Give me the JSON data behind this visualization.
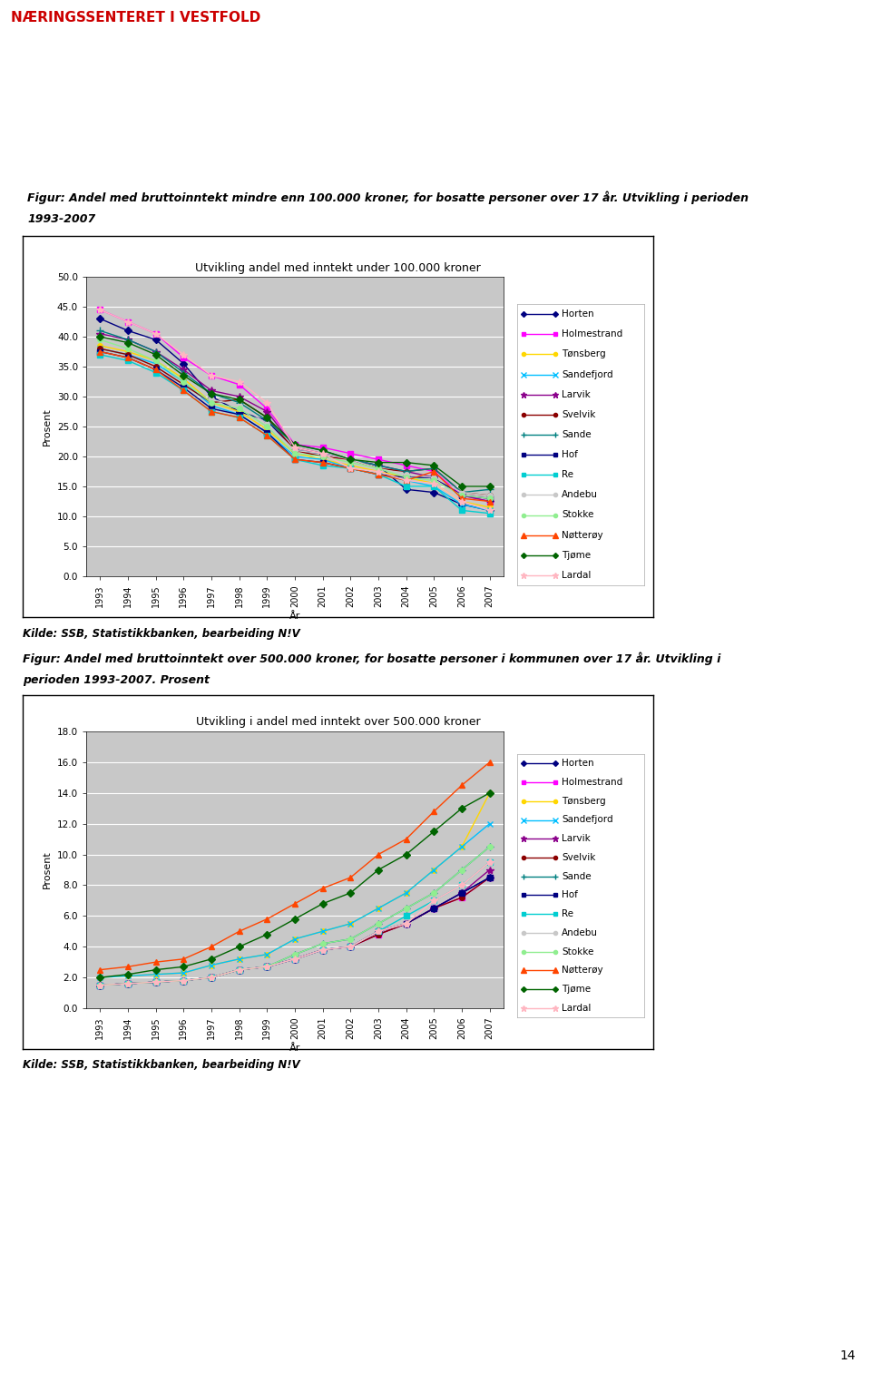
{
  "years": [
    1993,
    1994,
    1995,
    1996,
    1997,
    1998,
    1999,
    2000,
    2001,
    2002,
    2003,
    2004,
    2005,
    2006,
    2007
  ],
  "header_text": "NÆRINGSSENTERET I VESTFOLD",
  "header_bg": "#f0ebe8",
  "header_text_color": "#cc0000",
  "header_exclamation_bg": "#cc0000",
  "page_bg": "#ffffff",
  "fig1_caption_line1": "Figur: Andel med bruttoinntekt mindre enn 100.000 kroner, for bosatte personer over 17 år. Utvikling i perioden",
  "fig1_caption_line2": "1993-2007",
  "fig1_title": "Utvikling andel med inntekt under 100.000 kroner",
  "fig1_ylabel": "Prosent",
  "fig1_xlabel": "År",
  "fig1_ylim": [
    0,
    50
  ],
  "fig1_yticks": [
    0.0,
    5.0,
    10.0,
    15.0,
    20.0,
    25.0,
    30.0,
    35.0,
    40.0,
    45.0,
    50.0
  ],
  "fig1_source": "Kilde: SSB, Statistikkbanken, bearbeiding N!V",
  "fig2_caption_line1": "Figur: Andel med bruttoinntekt over 500.000 kroner, for bosatte personer i kommunen over 17 år. Utvikling i",
  "fig2_caption_line2": "perioden 1993-2007. Prosent",
  "fig2_title": "Utvikling i andel med inntekt over 500.000 kroner",
  "fig2_ylabel": "Prosent",
  "fig2_xlabel": "År",
  "fig2_ylim": [
    0,
    18
  ],
  "fig2_yticks": [
    0.0,
    2.0,
    4.0,
    6.0,
    8.0,
    10.0,
    12.0,
    14.0,
    16.0,
    18.0
  ],
  "fig2_source": "Kilde: SSB, Statistikkbanken, bearbeiding N!V",
  "municipalities": [
    "Horten",
    "Holmestrand",
    "Tønsberg",
    "Sandefjord",
    "Larvik",
    "Svelvik",
    "Sande",
    "Hof",
    "Re",
    "Andebu",
    "Stokke",
    "Nøtterøy",
    "Tjøme",
    "Lardal"
  ],
  "colors": [
    "#000080",
    "#FF00FF",
    "#FFD700",
    "#00BFFF",
    "#8B008B",
    "#8B0000",
    "#008080",
    "#000080",
    "#00CED1",
    "#C8C8C8",
    "#90EE90",
    "#FF4500",
    "#006400",
    "#FFB6C1"
  ],
  "markers": [
    "D",
    "s",
    "o",
    "x",
    "*",
    "o",
    "+",
    "s",
    "s",
    "o",
    "o",
    "^",
    "D",
    "*"
  ],
  "markersizes": [
    4,
    4,
    4,
    5,
    6,
    4,
    6,
    4,
    4,
    4,
    4,
    5,
    4,
    6
  ],
  "fig1_data": {
    "Horten": [
      43.0,
      41.0,
      39.5,
      35.5,
      30.0,
      27.5,
      26.0,
      21.0,
      20.5,
      19.5,
      18.5,
      14.5,
      14.0,
      12.0,
      11.0
    ],
    "Holmestrand": [
      44.5,
      42.5,
      40.5,
      36.5,
      33.5,
      32.0,
      28.0,
      22.0,
      21.5,
      20.5,
      19.5,
      18.5,
      17.5,
      13.5,
      12.5
    ],
    "Tønsberg": [
      38.5,
      37.5,
      36.0,
      33.0,
      29.0,
      27.5,
      24.5,
      20.5,
      19.5,
      18.5,
      17.5,
      16.5,
      15.5,
      12.5,
      11.5
    ],
    "Sandefjord": [
      38.0,
      37.0,
      35.5,
      32.5,
      28.5,
      27.0,
      24.0,
      20.0,
      19.5,
      18.0,
      17.0,
      16.0,
      15.0,
      12.0,
      11.0
    ],
    "Larvik": [
      40.5,
      39.5,
      37.5,
      34.5,
      31.0,
      30.0,
      27.5,
      21.5,
      20.5,
      19.5,
      18.5,
      17.5,
      16.5,
      13.5,
      12.5
    ],
    "Svelvik": [
      38.0,
      37.0,
      35.0,
      32.0,
      29.0,
      29.5,
      26.5,
      21.0,
      20.0,
      19.5,
      18.0,
      17.5,
      18.0,
      14.0,
      13.5
    ],
    "Sande": [
      41.0,
      39.5,
      37.5,
      34.0,
      30.5,
      29.0,
      26.0,
      22.0,
      21.0,
      19.5,
      18.5,
      17.5,
      18.0,
      14.0,
      14.5
    ],
    "Hof": [
      37.5,
      36.5,
      34.5,
      31.5,
      28.0,
      27.0,
      24.0,
      19.5,
      19.0,
      18.0,
      17.0,
      16.5,
      16.5,
      13.5,
      13.0
    ],
    "Re": [
      37.0,
      36.0,
      34.0,
      31.0,
      27.5,
      26.5,
      23.5,
      19.5,
      18.5,
      18.0,
      17.0,
      15.0,
      15.0,
      11.0,
      10.5
    ],
    "Andebu": [
      40.0,
      38.5,
      36.5,
      33.5,
      29.5,
      28.5,
      25.5,
      21.0,
      20.5,
      19.5,
      18.0,
      17.0,
      16.5,
      14.0,
      13.5
    ],
    "Stokke": [
      39.5,
      38.0,
      36.0,
      32.5,
      29.0,
      28.0,
      25.0,
      20.5,
      20.0,
      19.0,
      18.0,
      16.5,
      16.0,
      13.5,
      13.0
    ],
    "Nøtterøy": [
      37.5,
      36.5,
      34.5,
      31.0,
      27.5,
      26.5,
      23.5,
      19.5,
      19.0,
      18.0,
      17.0,
      16.0,
      17.5,
      13.0,
      12.5
    ],
    "Tjøme": [
      40.0,
      39.0,
      37.0,
      33.5,
      30.5,
      29.5,
      26.5,
      22.0,
      21.0,
      19.5,
      19.0,
      19.0,
      18.5,
      15.0,
      15.0
    ],
    "Lardal": [
      44.5,
      42.5,
      40.5,
      37.0,
      33.5,
      32.5,
      29.0,
      21.5,
      20.5,
      18.0,
      17.5,
      16.0,
      15.5,
      12.5,
      11.0
    ]
  },
  "fig2_data": {
    "Horten": [
      1.5,
      1.6,
      1.7,
      1.8,
      2.0,
      2.5,
      2.7,
      3.2,
      3.8,
      4.0,
      5.0,
      5.5,
      6.5,
      7.5,
      8.5
    ],
    "Holmestrand": [
      1.5,
      1.6,
      1.7,
      1.8,
      2.0,
      2.5,
      2.7,
      3.2,
      3.8,
      4.0,
      4.8,
      5.5,
      6.5,
      7.2,
      8.5
    ],
    "Tønsberg": [
      2.0,
      2.1,
      2.2,
      2.3,
      2.8,
      3.2,
      3.5,
      4.5,
      5.0,
      5.5,
      6.5,
      7.5,
      9.0,
      10.5,
      14.0
    ],
    "Sandefjord": [
      2.0,
      2.1,
      2.2,
      2.3,
      2.8,
      3.2,
      3.5,
      4.5,
      5.0,
      5.5,
      6.5,
      7.5,
      9.0,
      10.5,
      12.0
    ],
    "Larvik": [
      1.5,
      1.6,
      1.7,
      1.8,
      2.0,
      2.5,
      2.7,
      3.2,
      3.8,
      4.0,
      4.8,
      5.5,
      6.5,
      7.5,
      9.0
    ],
    "Svelvik": [
      1.5,
      1.6,
      1.7,
      1.8,
      2.0,
      2.5,
      2.7,
      3.2,
      3.8,
      4.0,
      4.8,
      5.5,
      6.5,
      7.2,
      8.5
    ],
    "Sande": [
      1.5,
      1.6,
      1.7,
      1.8,
      2.0,
      2.5,
      2.7,
      3.5,
      4.2,
      4.5,
      5.5,
      6.5,
      7.5,
      9.0,
      10.5
    ],
    "Hof": [
      1.5,
      1.6,
      1.7,
      1.8,
      2.0,
      2.5,
      2.7,
      3.2,
      3.8,
      4.0,
      5.0,
      5.5,
      6.5,
      7.5,
      8.5
    ],
    "Re": [
      1.5,
      1.6,
      1.7,
      1.8,
      2.0,
      2.5,
      2.7,
      3.2,
      3.8,
      4.0,
      5.0,
      6.0,
      7.0,
      8.0,
      9.5
    ],
    "Andebu": [
      1.5,
      1.6,
      1.7,
      1.8,
      2.0,
      2.5,
      2.7,
      3.2,
      3.8,
      4.0,
      5.0,
      5.5,
      7.0,
      8.0,
      9.5
    ],
    "Stokke": [
      1.5,
      1.6,
      1.7,
      1.8,
      2.0,
      2.5,
      2.7,
      3.5,
      4.2,
      4.5,
      5.5,
      6.5,
      7.5,
      9.0,
      10.5
    ],
    "Nøtterøy": [
      2.5,
      2.7,
      3.0,
      3.2,
      4.0,
      5.0,
      5.8,
      6.8,
      7.8,
      8.5,
      10.0,
      11.0,
      12.8,
      14.5,
      16.0
    ],
    "Tjøme": [
      2.0,
      2.2,
      2.5,
      2.7,
      3.2,
      4.0,
      4.8,
      5.8,
      6.8,
      7.5,
      9.0,
      10.0,
      11.5,
      13.0,
      14.0
    ],
    "Lardal": [
      1.5,
      1.6,
      1.7,
      1.8,
      2.0,
      2.5,
      2.7,
      3.2,
      3.8,
      4.0,
      5.0,
      5.5,
      7.0,
      8.0,
      9.5
    ]
  },
  "page_number": "14"
}
